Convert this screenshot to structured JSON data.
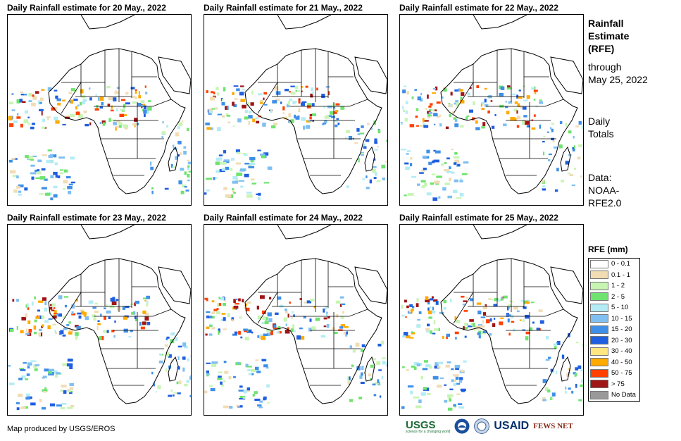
{
  "panels": [
    {
      "title": "Daily Rainfall estimate for 20 May., 2022"
    },
    {
      "title": "Daily Rainfall estimate for 21 May., 2022"
    },
    {
      "title": "Daily Rainfall estimate for 22 May., 2022"
    },
    {
      "title": "Daily Rainfall estimate for 23 May., 2022"
    },
    {
      "title": "Daily Rainfall estimate for 24 May., 2022"
    },
    {
      "title": "Daily Rainfall estimate for 25 May., 2022"
    }
  ],
  "side": {
    "heading": [
      "Rainfall",
      "Estimate",
      "(RFE)"
    ],
    "through": [
      "through",
      "May 25, 2022"
    ],
    "totals": [
      "Daily",
      "Totals"
    ],
    "data": [
      "Data:",
      "NOAA-",
      "RFE2.0"
    ]
  },
  "legend": {
    "title": "RFE (mm)",
    "items": [
      {
        "label": "0 - 0.1",
        "color": "#ffffff"
      },
      {
        "label": "0.1 - 1",
        "color": "#f1dcb4"
      },
      {
        "label": "1 - 2",
        "color": "#c8f5b4"
      },
      {
        "label": "2 - 5",
        "color": "#6fe36f"
      },
      {
        "label": "5 - 10",
        "color": "#b4ecf5"
      },
      {
        "label": "10 - 15",
        "color": "#7fbff2"
      },
      {
        "label": "15 - 20",
        "color": "#3f8fe8"
      },
      {
        "label": "20 - 30",
        "color": "#1f5fe0"
      },
      {
        "label": "30 - 40",
        "color": "#ffe680"
      },
      {
        "label": "40 - 50",
        "color": "#ffaa00"
      },
      {
        "label": "50 - 75",
        "color": "#ff4000"
      },
      {
        "label": "> 75",
        "color": "#a01515"
      },
      {
        "label": "No Data",
        "color": "#999999"
      }
    ]
  },
  "footer": {
    "credit": "Map produced by USGS/EROS"
  },
  "logos": {
    "usgs": "USGS",
    "usgs_tag": "science for a changing world",
    "usaid": "USAID",
    "fews": "FEWS NET"
  }
}
